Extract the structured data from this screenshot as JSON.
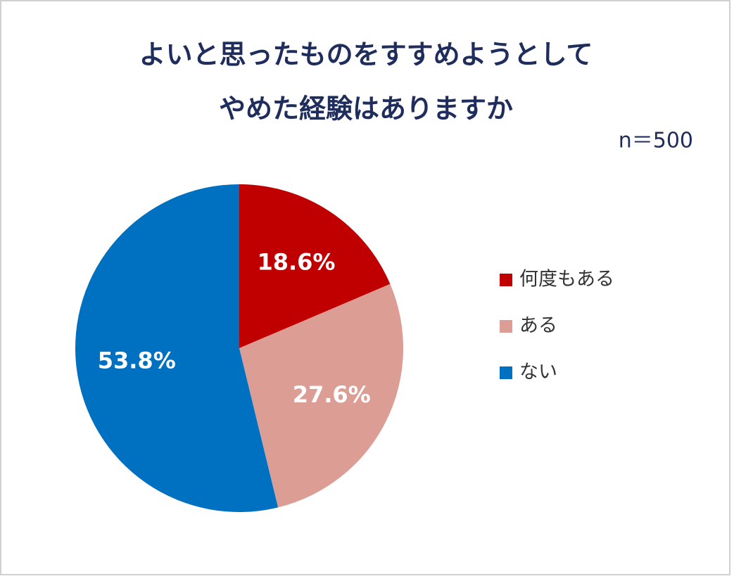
{
  "chart_data": {
    "type": "pie",
    "title": [
      "よいと思ったものをすすめようとして",
      "やめた経験はありますか"
    ],
    "subtitle": "n＝500",
    "categories": [
      "何度もある",
      "ある",
      "ない"
    ],
    "values": [
      18.6,
      27.6,
      53.8
    ],
    "value_labels": [
      "18.6%",
      "27.6%",
      "53.8%"
    ],
    "colors": [
      "#c00000",
      "#dc9e94",
      "#0070c0"
    ],
    "legend": "right"
  }
}
